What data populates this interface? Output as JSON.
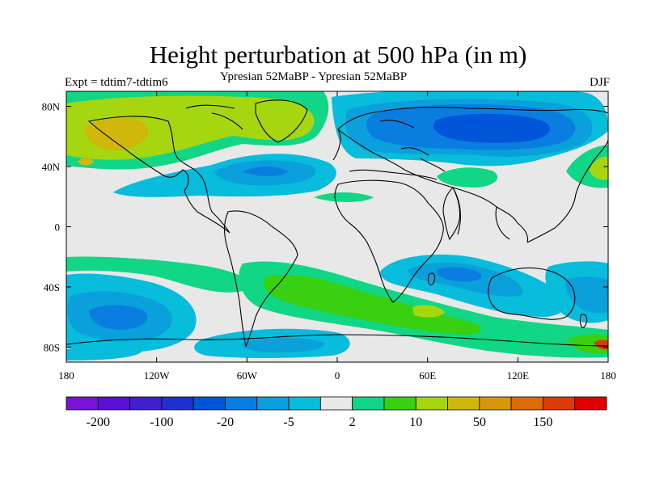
{
  "header": {
    "title": "Height perturbation at 500 hPa (in m)",
    "subtitle": "Ypresian  52MaBP - Ypresian  52MaBP",
    "left_label": "Expt = tdtim7-tdtim6",
    "right_label": "DJF"
  },
  "map": {
    "lon_range": [
      -180,
      180
    ],
    "lat_range": [
      -90,
      90
    ],
    "lon_ticks": [
      {
        "value": -180,
        "label": "180"
      },
      {
        "value": -120,
        "label": "120W"
      },
      {
        "value": -60,
        "label": "60W"
      },
      {
        "value": 0,
        "label": "0"
      },
      {
        "value": 60,
        "label": "60E"
      },
      {
        "value": 120,
        "label": "120E"
      },
      {
        "value": 180,
        "label": "180"
      }
    ],
    "lat_ticks": [
      {
        "value": 80,
        "label": "80N"
      },
      {
        "value": 40,
        "label": "40N"
      },
      {
        "value": 0,
        "label": "0"
      },
      {
        "value": -40,
        "label": "40S"
      },
      {
        "value": -80,
        "label": "80S"
      }
    ],
    "background_color": "#e8e8e8"
  },
  "colorbar": {
    "colors": [
      "#7a12d8",
      "#5b10d6",
      "#4220cf",
      "#2030cf",
      "#0055d8",
      "#0a7ee0",
      "#0aa0dc",
      "#08bcdc",
      "#e8e8e8",
      "#10d686",
      "#38d010",
      "#a6d610",
      "#d0b80a",
      "#d8960a",
      "#dc6a08",
      "#dc3a08",
      "#e00000"
    ],
    "labels": [
      {
        "after_box": 1,
        "text": "-200"
      },
      {
        "after_box": 3,
        "text": "-100"
      },
      {
        "after_box": 5,
        "text": "-20"
      },
      {
        "after_box": 7,
        "text": "-5"
      },
      {
        "after_box": 9,
        "text": "2"
      },
      {
        "after_box": 11,
        "text": "10"
      },
      {
        "after_box": 13,
        "text": "50"
      },
      {
        "after_box": 15,
        "text": "150"
      }
    ]
  }
}
